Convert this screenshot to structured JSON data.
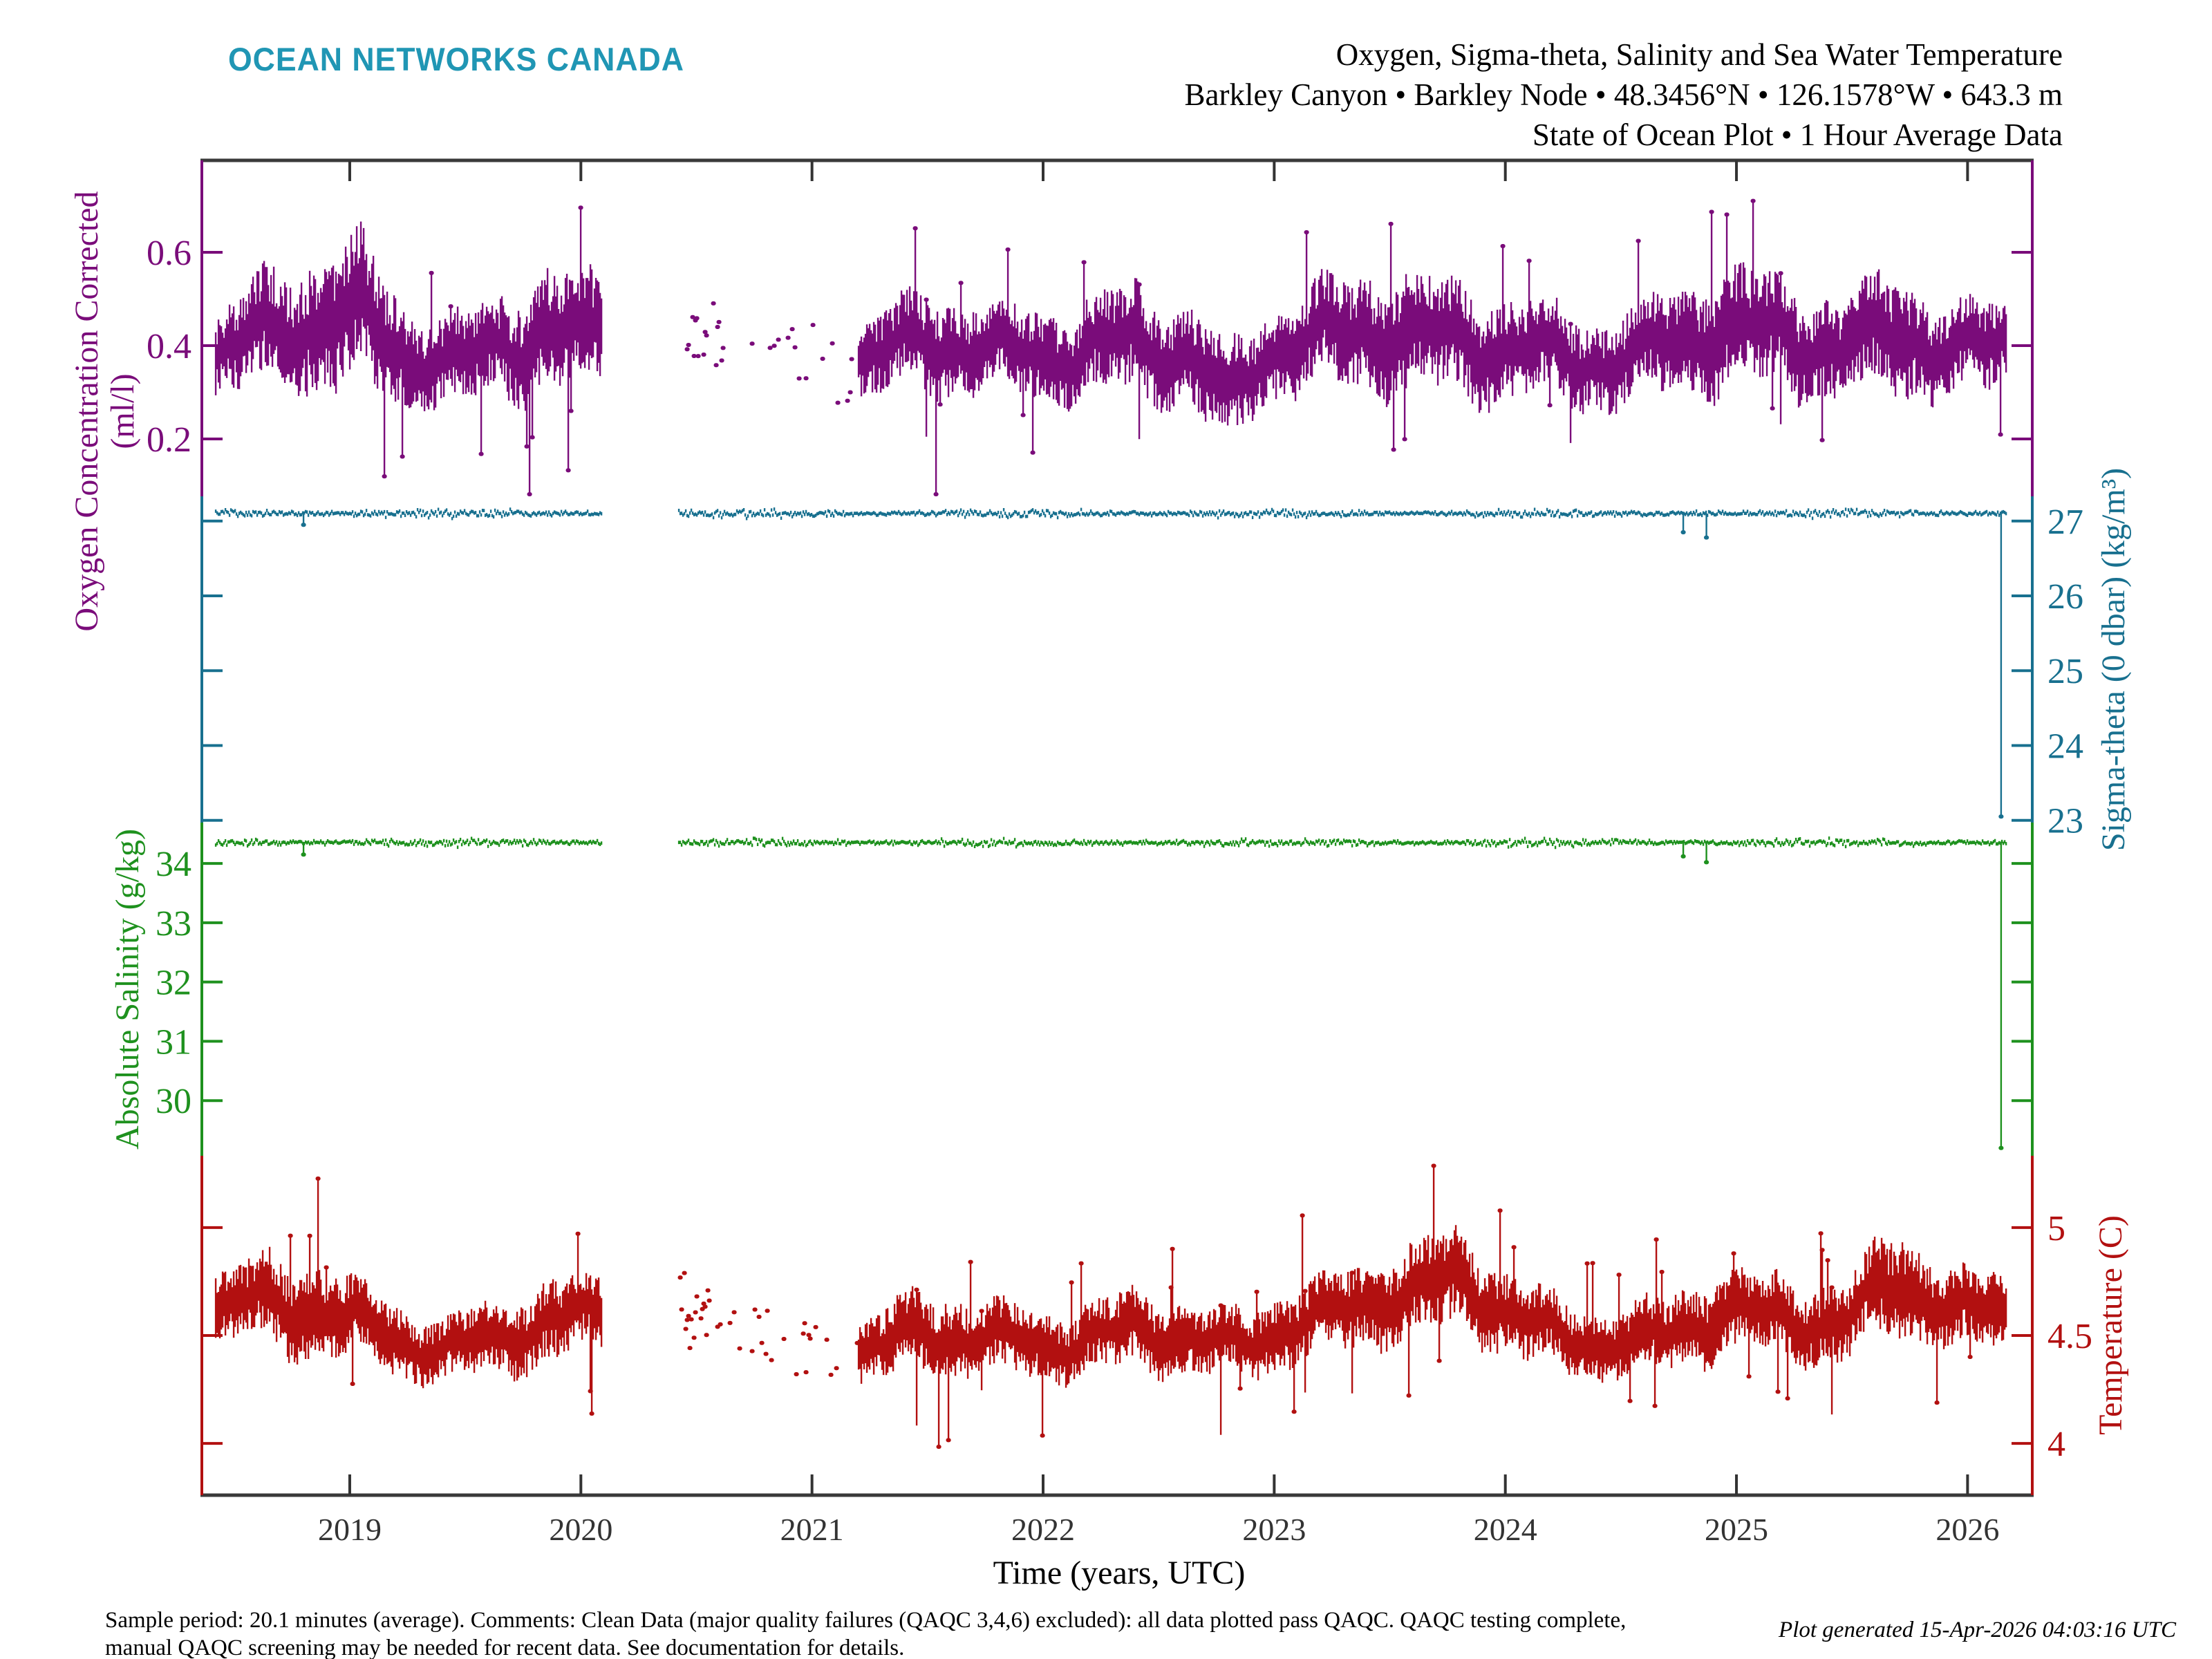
{
  "header": {
    "logo_text": "OCEAN NETWORKS CANADA",
    "logo_color": "#2096b4"
  },
  "footer": {
    "line1": "Sample period: 20.1 minutes (average). Comments: Clean Data (major quality failures (QAQC 3,4,6) excluded): all data plotted pass QAQC. QAQC testing complete,",
    "line2": "manual QAQC screening may be needed for recent data. See documentation for details.",
    "generated": "Plot generated 15-Apr-2026 04:03:16 UTC"
  },
  "colors": {
    "background": "#ffffff",
    "frame": "#3a3a3a",
    "x_text": "#333333"
  },
  "chart_data": {
    "type": "scatter",
    "title_lines": [
      "Oxygen, Sigma-theta, Salinity and Sea Water Temperature",
      "Barkley Canyon • Barkley Node • 48.3456°N • 126.1578°W • 643.3 m",
      "State of Ocean Plot • 1 Hour Average Data"
    ],
    "xlabel": "Time (years, UTC)",
    "x_ticks": [
      2019,
      2020,
      2021,
      2022,
      2023,
      2024,
      2025,
      2026
    ],
    "xlim": [
      2018.36,
      2026.28
    ],
    "data_range": [
      2018.42,
      2026.17
    ],
    "gap": [
      2020.09,
      2020.42
    ],
    "sparse_until": 2021.2,
    "sparse_dense_until": 2020.62,
    "panels": [
      {
        "name": "oxygen",
        "label": "Oxygen Concentration Corrected",
        "units": "(ml/l)",
        "axis_side": "left",
        "color": "#7a0c7a",
        "ticks": [
          0.2,
          0.4,
          0.6
        ],
        "ylim": [
          0.797,
          0.077
        ],
        "frac": [
          0.0,
          0.2517
        ],
        "style": "noisy-band",
        "envelope": {
          "x": [
            2018.42,
            2018.6,
            2018.85,
            2019.05,
            2019.25,
            2019.45,
            2019.65,
            2019.85,
            2020.08,
            2020.42,
            2020.7,
            2021.0,
            2021.2,
            2021.5,
            2021.8,
            2022.1,
            2022.4,
            2022.65,
            2022.8,
            2022.95,
            2023.2,
            2023.5,
            2023.8,
            2024.1,
            2024.4,
            2024.7,
            2024.95,
            2025.2,
            2025.45,
            2025.7,
            2025.95,
            2026.17
          ],
          "center": [
            0.37,
            0.42,
            0.45,
            0.46,
            0.38,
            0.36,
            0.4,
            0.43,
            0.42,
            0.42,
            0.4,
            0.38,
            0.37,
            0.41,
            0.39,
            0.38,
            0.41,
            0.37,
            0.28,
            0.38,
            0.42,
            0.43,
            0.41,
            0.39,
            0.36,
            0.4,
            0.44,
            0.42,
            0.39,
            0.43,
            0.38,
            0.41
          ],
          "half_width": [
            0.07,
            0.1,
            0.12,
            0.13,
            0.09,
            0.08,
            0.09,
            0.11,
            0.1,
            0.07,
            0.07,
            0.06,
            0.07,
            0.09,
            0.08,
            0.08,
            0.1,
            0.09,
            0.09,
            0.08,
            0.09,
            0.11,
            0.1,
            0.09,
            0.08,
            0.09,
            0.11,
            0.1,
            0.09,
            0.11,
            0.08,
            0.09
          ]
        }
      },
      {
        "name": "sigma_theta",
        "label": "Sigma-theta (0 dbar) (kg/m³)",
        "units": "",
        "axis_side": "right",
        "color": "#18708f",
        "ticks": [
          23,
          24,
          25,
          26,
          27
        ],
        "ylim": [
          27.33,
          22.97
        ],
        "frac": [
          0.2517,
          0.4961
        ],
        "style": "flat-line",
        "baseline": 27.1,
        "noise": 0.04,
        "dips": [
          {
            "x": 2018.8,
            "value": 26.95
          },
          {
            "x": 2024.77,
            "value": 26.85
          },
          {
            "x": 2024.87,
            "value": 26.78
          }
        ],
        "end_spike": {
          "x": 2026.145,
          "value": 23.05
        }
      },
      {
        "name": "salinity",
        "label": "Absolute Salinity (g/kg)",
        "units": "",
        "axis_side": "left",
        "color": "#1e911e",
        "ticks": [
          30,
          31,
          32,
          33,
          34
        ],
        "ylim": [
          34.69,
          29.07
        ],
        "frac": [
          0.4961,
          0.7457
        ],
        "style": "flat-line",
        "baseline": 34.35,
        "noise": 0.05,
        "dips": [
          {
            "x": 2018.8,
            "value": 34.15
          },
          {
            "x": 2024.77,
            "value": 34.12
          },
          {
            "x": 2024.87,
            "value": 34.02
          }
        ],
        "end_spike": {
          "x": 2026.145,
          "value": 29.2
        }
      },
      {
        "name": "temperature",
        "label": "Temperature (C)",
        "units": "",
        "axis_side": "right",
        "color": "#b21010",
        "ticks": [
          4,
          4.5,
          5
        ],
        "ylim": [
          5.333,
          3.76
        ],
        "frac": [
          0.7457,
          1.0
        ],
        "style": "noisy-band",
        "envelope": {
          "x": [
            2018.42,
            2018.6,
            2018.85,
            2019.05,
            2019.25,
            2019.45,
            2019.65,
            2019.85,
            2020.08,
            2020.42,
            2020.7,
            2021.0,
            2021.2,
            2021.5,
            2021.8,
            2022.1,
            2022.4,
            2022.65,
            2022.8,
            2022.95,
            2023.2,
            2023.5,
            2023.8,
            2024.1,
            2024.4,
            2024.7,
            2024.95,
            2025.2,
            2025.45,
            2025.7,
            2025.95,
            2026.17
          ],
          "center": [
            4.62,
            4.66,
            4.62,
            4.55,
            4.46,
            4.43,
            4.5,
            4.56,
            4.6,
            4.6,
            4.52,
            4.42,
            4.42,
            4.52,
            4.47,
            4.46,
            4.53,
            4.48,
            4.44,
            4.5,
            4.58,
            4.68,
            4.75,
            4.55,
            4.45,
            4.5,
            4.62,
            4.58,
            4.55,
            4.76,
            4.6,
            4.62
          ],
          "half_width": [
            0.14,
            0.17,
            0.19,
            0.16,
            0.13,
            0.13,
            0.15,
            0.16,
            0.15,
            0.13,
            0.13,
            0.12,
            0.13,
            0.16,
            0.14,
            0.13,
            0.15,
            0.14,
            0.13,
            0.14,
            0.15,
            0.17,
            0.2,
            0.15,
            0.13,
            0.14,
            0.17,
            0.15,
            0.15,
            0.21,
            0.15,
            0.15
          ]
        }
      }
    ]
  }
}
